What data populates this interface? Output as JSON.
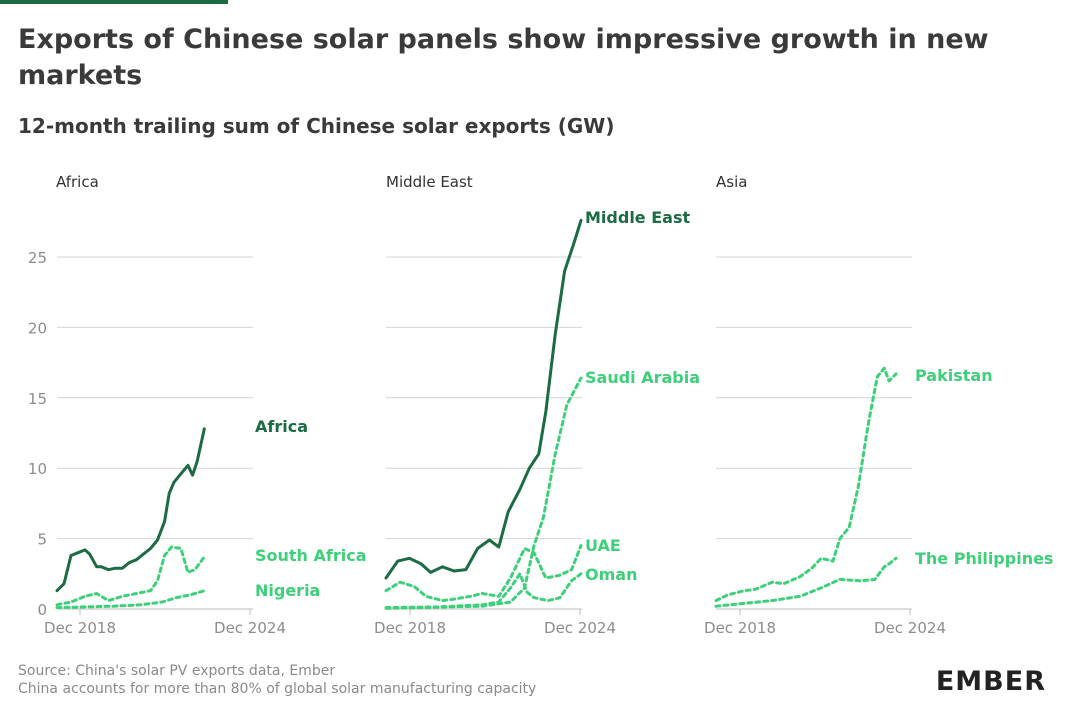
{
  "title": "Exports of Chinese solar panels show impressive growth in new markets",
  "subtitle": "12-month trailing sum of Chinese solar exports (GW)",
  "source": "Source: China's solar PV exports data, Ember",
  "note": "China accounts for more than 80% of global solar manufacturing capacity",
  "logo": "EMBER",
  "colors": {
    "dark": "#1b6b43",
    "light": "#3ecf7a",
    "grid": "#d4d4d4",
    "axis_text": "#8c8c8c"
  },
  "chart_data": [
    {
      "type": "line",
      "title": "Africa",
      "x_range": [
        "2018-01",
        "2024-12"
      ],
      "xticks": [
        "Dec 2018",
        "Dec 2024"
      ],
      "yticks": [
        0,
        5,
        10,
        15,
        20,
        25
      ],
      "ylim": [
        0,
        28
      ],
      "grid": true,
      "series": [
        {
          "name": "Africa",
          "style": "solid",
          "color": "dark",
          "points": [
            [
              "2018-01",
              1.3
            ],
            [
              "2018-04",
              1.8
            ],
            [
              "2018-07",
              3.8
            ],
            [
              "2018-10",
              4.0
            ],
            [
              "2019-01",
              4.2
            ],
            [
              "2019-03",
              3.9
            ],
            [
              "2019-06",
              3.0
            ],
            [
              "2019-08",
              3.0
            ],
            [
              "2019-11",
              2.8
            ],
            [
              "2020-02",
              2.9
            ],
            [
              "2020-05",
              2.9
            ],
            [
              "2020-08",
              3.3
            ],
            [
              "2020-11",
              3.5
            ],
            [
              "2021-02",
              3.9
            ],
            [
              "2021-05",
              4.3
            ],
            [
              "2021-08",
              4.9
            ],
            [
              "2021-11",
              6.2
            ],
            [
              "2022-01",
              8.2
            ],
            [
              "2022-03",
              9.0
            ],
            [
              "2022-06",
              9.6
            ],
            [
              "2022-09",
              10.2
            ],
            [
              "2022-11",
              9.5
            ],
            [
              "2023-01",
              10.5
            ],
            [
              "2023-04",
              12.8
            ]
          ]
        },
        {
          "name": "South Africa",
          "style": "dashed",
          "color": "light",
          "points": [
            [
              "2018-01",
              0.3
            ],
            [
              "2018-07",
              0.5
            ],
            [
              "2019-01",
              0.9
            ],
            [
              "2019-06",
              1.1
            ],
            [
              "2019-11",
              0.6
            ],
            [
              "2020-05",
              0.9
            ],
            [
              "2020-11",
              1.1
            ],
            [
              "2021-05",
              1.3
            ],
            [
              "2021-08",
              2.0
            ],
            [
              "2021-11",
              3.8
            ],
            [
              "2022-02",
              4.4
            ],
            [
              "2022-06",
              4.3
            ],
            [
              "2022-09",
              2.6
            ],
            [
              "2022-12",
              2.8
            ],
            [
              "2023-04",
              3.7
            ]
          ]
        },
        {
          "name": "Nigeria",
          "style": "dashed",
          "color": "light",
          "points": [
            [
              "2018-01",
              0.1
            ],
            [
              "2019-01",
              0.15
            ],
            [
              "2020-01",
              0.2
            ],
            [
              "2021-01",
              0.3
            ],
            [
              "2021-10",
              0.5
            ],
            [
              "2022-04",
              0.8
            ],
            [
              "2022-10",
              1.0
            ],
            [
              "2023-04",
              1.3
            ]
          ]
        }
      ]
    },
    {
      "type": "line",
      "title": "Middle East",
      "x_range": [
        "2018-01",
        "2024-12"
      ],
      "xticks": [
        "Dec 2018",
        "Dec 2024"
      ],
      "yticks": [
        0,
        5,
        10,
        15,
        20,
        25
      ],
      "ylim": [
        0,
        28
      ],
      "grid": true,
      "series": [
        {
          "name": "Middle East",
          "style": "solid",
          "color": "dark",
          "points": [
            [
              "2018-01",
              2.2
            ],
            [
              "2018-06",
              3.4
            ],
            [
              "2018-11",
              3.6
            ],
            [
              "2019-04",
              3.2
            ],
            [
              "2019-08",
              2.6
            ],
            [
              "2020-01",
              3.0
            ],
            [
              "2020-06",
              2.7
            ],
            [
              "2020-11",
              2.8
            ],
            [
              "2021-04",
              4.3
            ],
            [
              "2021-09",
              4.9
            ],
            [
              "2022-01",
              4.4
            ],
            [
              "2022-05",
              6.9
            ],
            [
              "2022-10",
              8.5
            ],
            [
              "2023-02",
              10.0
            ],
            [
              "2023-06",
              11.0
            ],
            [
              "2023-09",
              14.0
            ],
            [
              "2024-01",
              19.5
            ],
            [
              "2024-05",
              24.0
            ],
            [
              "2024-09",
              26.0
            ],
            [
              "2024-12",
              27.6
            ]
          ]
        },
        {
          "name": "Saudi Arabia",
          "style": "dashed",
          "color": "light",
          "points": [
            [
              "2018-01",
              0.1
            ],
            [
              "2020-01",
              0.15
            ],
            [
              "2021-06",
              0.2
            ],
            [
              "2022-06",
              0.5
            ],
            [
              "2022-12",
              1.5
            ],
            [
              "2023-04",
              4.5
            ],
            [
              "2023-08",
              6.5
            ],
            [
              "2024-01",
              11.0
            ],
            [
              "2024-06",
              14.5
            ],
            [
              "2024-12",
              16.4
            ]
          ]
        },
        {
          "name": "UAE",
          "style": "dashed",
          "color": "light",
          "points": [
            [
              "2018-01",
              1.3
            ],
            [
              "2018-07",
              1.9
            ],
            [
              "2019-01",
              1.6
            ],
            [
              "2019-06",
              0.9
            ],
            [
              "2020-01",
              0.6
            ],
            [
              "2020-06",
              0.7
            ],
            [
              "2021-01",
              0.9
            ],
            [
              "2021-06",
              1.1
            ],
            [
              "2022-01",
              0.9
            ],
            [
              "2022-06",
              2.2
            ],
            [
              "2022-12",
              4.3
            ],
            [
              "2023-04",
              4.0
            ],
            [
              "2023-09",
              2.2
            ],
            [
              "2024-03",
              2.4
            ],
            [
              "2024-08",
              2.8
            ],
            [
              "2024-12",
              4.5
            ]
          ]
        },
        {
          "name": "Oman",
          "style": "dashed",
          "color": "light",
          "points": [
            [
              "2018-01",
              0.05
            ],
            [
              "2019-06",
              0.1
            ],
            [
              "2020-06",
              0.2
            ],
            [
              "2021-06",
              0.3
            ],
            [
              "2022-01",
              0.5
            ],
            [
              "2022-06",
              1.5
            ],
            [
              "2022-10",
              2.5
            ],
            [
              "2023-01",
              1.2
            ],
            [
              "2023-04",
              0.8
            ],
            [
              "2023-10",
              0.6
            ],
            [
              "2024-03",
              0.8
            ],
            [
              "2024-08",
              2.0
            ],
            [
              "2024-12",
              2.5
            ]
          ]
        }
      ]
    },
    {
      "type": "line",
      "title": "Asia",
      "x_range": [
        "2018-01",
        "2024-12"
      ],
      "xticks": [
        "Dec 2018",
        "Dec 2024"
      ],
      "yticks": [
        0,
        5,
        10,
        15,
        20,
        25
      ],
      "ylim": [
        0,
        28
      ],
      "grid": true,
      "series": [
        {
          "name": "Pakistan",
          "style": "dashed",
          "color": "light",
          "points": [
            [
              "2018-01",
              0.6
            ],
            [
              "2018-06",
              1.0
            ],
            [
              "2019-01",
              1.3
            ],
            [
              "2019-06",
              1.4
            ],
            [
              "2020-01",
              1.9
            ],
            [
              "2020-06",
              1.8
            ],
            [
              "2021-01",
              2.3
            ],
            [
              "2021-06",
              2.9
            ],
            [
              "2021-10",
              3.6
            ],
            [
              "2022-03",
              3.4
            ],
            [
              "2022-06",
              5.0
            ],
            [
              "2022-10",
              5.8
            ],
            [
              "2023-02",
              8.8
            ],
            [
              "2023-06",
              13.0
            ],
            [
              "2023-10",
              16.5
            ],
            [
              "2024-01",
              17.1
            ],
            [
              "2024-03",
              16.2
            ],
            [
              "2024-06",
              16.7
            ]
          ]
        },
        {
          "name": "The Philippines",
          "style": "dashed",
          "color": "light",
          "points": [
            [
              "2018-01",
              0.2
            ],
            [
              "2019-01",
              0.4
            ],
            [
              "2020-01",
              0.6
            ],
            [
              "2021-01",
              0.9
            ],
            [
              "2021-10",
              1.5
            ],
            [
              "2022-06",
              2.1
            ],
            [
              "2023-03",
              2.0
            ],
            [
              "2023-09",
              2.1
            ],
            [
              "2024-01",
              3.0
            ],
            [
              "2024-03",
              3.2
            ],
            [
              "2024-06",
              3.6
            ]
          ]
        }
      ]
    }
  ]
}
